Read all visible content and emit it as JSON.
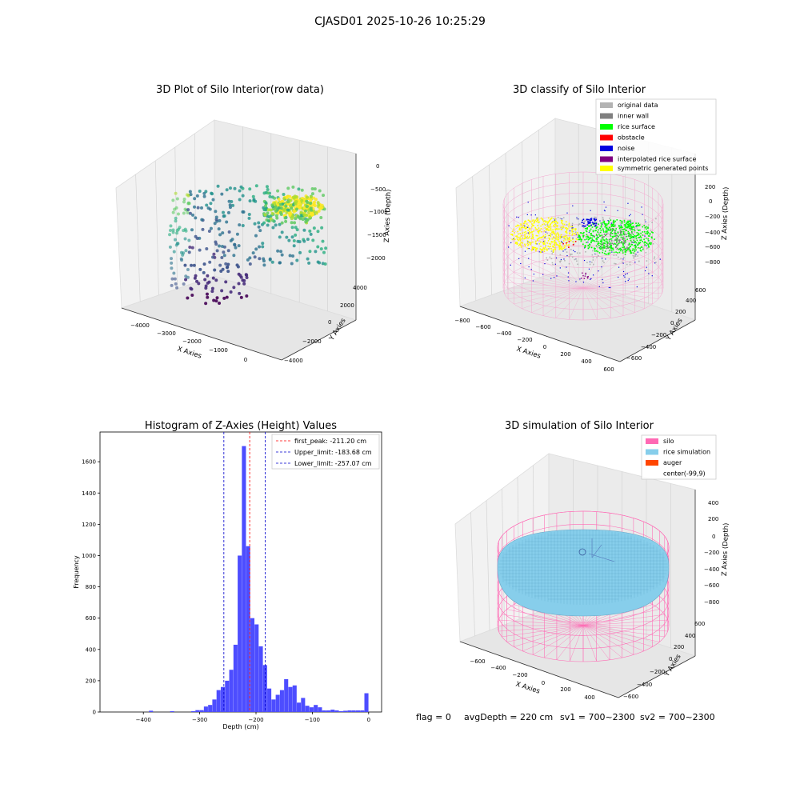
{
  "suptitle": "CJASD01 2025-10-26 10:25:29",
  "status_line": {
    "flag": "flag = 0",
    "avg_depth": "avgDepth = 220 cm",
    "sv1": "sv1 = 700~2300",
    "sv2": "sv2 = 700~2300"
  },
  "chart_data": [
    {
      "type": "scatter",
      "projection": "3d",
      "title": "3D Plot of Silo Interior(row data)",
      "xlabel": "X Axies",
      "ylabel": "Y Axies",
      "zlabel": "Z Axies (Depth)",
      "xticks": [
        "−4000",
        "−3000",
        "−2000",
        "−1000",
        "0"
      ],
      "yticks": [
        "−4000",
        "−2000",
        "0",
        "2000",
        "4000"
      ],
      "zticks": [
        "0",
        "−500",
        "−1000",
        "−1500",
        "−2000"
      ],
      "colormap": "viridis",
      "grid": true
    },
    {
      "type": "scatter",
      "projection": "3d",
      "title": "3D classify of Silo Interior",
      "xlabel": "X Axies",
      "ylabel": "Y Axies",
      "zlabel": "Z Axies (Depth)",
      "xticks": [
        "−800",
        "−600",
        "−400",
        "−200",
        "0",
        "200",
        "400",
        "600"
      ],
      "yticks": [
        "−600",
        "−400",
        "−200",
        "0",
        "200",
        "400",
        "600"
      ],
      "zticks": [
        "200",
        "0",
        "−200",
        "−400",
        "−600",
        "−800"
      ],
      "legend": [
        {
          "label": "original data",
          "color": "#b3b3b3"
        },
        {
          "label": "inner wall",
          "color": "#808080"
        },
        {
          "label": "rice surface",
          "color": "#00ff00"
        },
        {
          "label": "obstacle",
          "color": "#ff0000"
        },
        {
          "label": "noise",
          "color": "#0000e0"
        },
        {
          "label": "interpolated rice surface",
          "color": "#800080"
        },
        {
          "label": "symmetric generated points",
          "color": "#ffff00"
        }
      ],
      "wire_color": "#f4a8cf",
      "legend_position": "top-right",
      "grid": true
    },
    {
      "type": "bar",
      "title": "Histogram of Z-Axies (Height) Values",
      "xlabel": "Depth (cm)",
      "ylabel": "Frequency",
      "xlim": [
        -477,
        23
      ],
      "ylim": [
        0,
        1790
      ],
      "xticks": [
        -400,
        -300,
        -200,
        -100,
        0
      ],
      "yticks": [
        0,
        200,
        400,
        600,
        800,
        1000,
        1200,
        1400,
        1600
      ],
      "bar_color": "#4d4dff",
      "bin_width": 7.5,
      "bins": [
        [
          -386.3,
          8
        ],
        [
          -348.8,
          5
        ],
        [
          -311.3,
          5
        ],
        [
          -303.8,
          12
        ],
        [
          -296.3,
          12
        ],
        [
          -288.8,
          35
        ],
        [
          -281.3,
          45
        ],
        [
          -273.8,
          80
        ],
        [
          -266.3,
          140
        ],
        [
          -258.8,
          160
        ],
        [
          -251.3,
          200
        ],
        [
          -243.8,
          270
        ],
        [
          -236.3,
          430
        ],
        [
          -228.8,
          1000
        ],
        [
          -221.3,
          1700
        ],
        [
          -213.8,
          1060
        ],
        [
          -206.3,
          600
        ],
        [
          -198.8,
          560
        ],
        [
          -191.3,
          420
        ],
        [
          -183.8,
          300
        ],
        [
          -176.3,
          150
        ],
        [
          -168.8,
          80
        ],
        [
          -161.3,
          110
        ],
        [
          -153.8,
          140
        ],
        [
          -146.3,
          210
        ],
        [
          -138.8,
          160
        ],
        [
          -131.3,
          170
        ],
        [
          -123.8,
          60
        ],
        [
          -116.3,
          90
        ],
        [
          -108.8,
          40
        ],
        [
          -101.3,
          30
        ],
        [
          -93.8,
          45
        ],
        [
          -86.3,
          30
        ],
        [
          -78.8,
          10
        ],
        [
          -71.3,
          10
        ],
        [
          -63.8,
          15
        ],
        [
          -56.3,
          10
        ],
        [
          -48.8,
          5
        ],
        [
          -41.3,
          8
        ],
        [
          -33.8,
          10
        ],
        [
          -26.3,
          10
        ],
        [
          -18.8,
          10
        ],
        [
          -11.3,
          10
        ],
        [
          -3.8,
          120
        ]
      ],
      "vlines": [
        {
          "label": "first_peak: -211.20 cm",
          "x": -211.2,
          "color": "#ff0000"
        },
        {
          "label": "Upper_limit: -183.68 cm",
          "x": -183.68,
          "color": "#0000cc"
        },
        {
          "label": "Lower_limit: -257.07 cm",
          "x": -257.07,
          "color": "#0000cc"
        }
      ],
      "legend_position": "top-right"
    },
    {
      "type": "surface",
      "projection": "3d",
      "title": "3D simulation of Silo Interior",
      "xlabel": "X Axies",
      "ylabel": "Y Axies",
      "zlabel": "Z Axies (Depth)",
      "xticks": [
        "−600",
        "−400",
        "−200",
        "0",
        "200",
        "400"
      ],
      "yticks": [
        "−600",
        "−400",
        "−200",
        "0",
        "200",
        "400",
        "600"
      ],
      "zticks": [
        "400",
        "200",
        "0",
        "−200",
        "−400",
        "−600",
        "−800"
      ],
      "legend": [
        {
          "label": "silo",
          "color": "#ff69b4"
        },
        {
          "label": "rice simulation",
          "color": "#87ceeb"
        },
        {
          "label": "auger",
          "color": "#ff4500"
        },
        {
          "label": "center(-99,9)",
          "color": ""
        }
      ],
      "legend_position": "top-right",
      "grid": true
    }
  ]
}
